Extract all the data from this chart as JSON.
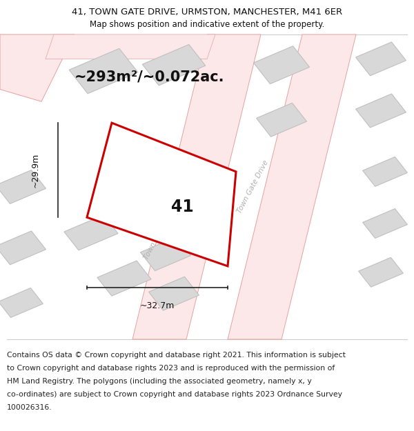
{
  "title_line1": "41, TOWN GATE DRIVE, URMSTON, MANCHESTER, M41 6ER",
  "title_line2": "Map shows position and indicative extent of the property.",
  "footer_text": "Contains OS data © Crown copyright and database right 2021. This information is subject\nto Crown copyright and database rights 2023 and is reproduced with the permission of\nHM Land Registry. The polygons (including the associated geometry, namely x, y\nco-ordinates) are subject to Crown copyright and database rights 2023 Ordnance Survey\n100026316.",
  "area_label": "~293m²/~0.072ac.",
  "width_label": "~32.7m",
  "height_label": "~29.9m",
  "plot_number": "41",
  "bg_color": "#ffffff",
  "road_fill": "#fce8e8",
  "road_edge": "#e8a0a0",
  "building_fill": "#d8d8d8",
  "building_edge": "#c0c0c0",
  "highlight_color": "#cc0000",
  "road_label_color": "#b0b0b0",
  "dim_color": "#222222",
  "separator_color": "#cccccc",
  "title_fontsize": 9.5,
  "subtitle_fontsize": 8.5,
  "area_fontsize": 15,
  "plot_num_fontsize": 17,
  "dim_fontsize": 9,
  "footer_fontsize": 7.8
}
